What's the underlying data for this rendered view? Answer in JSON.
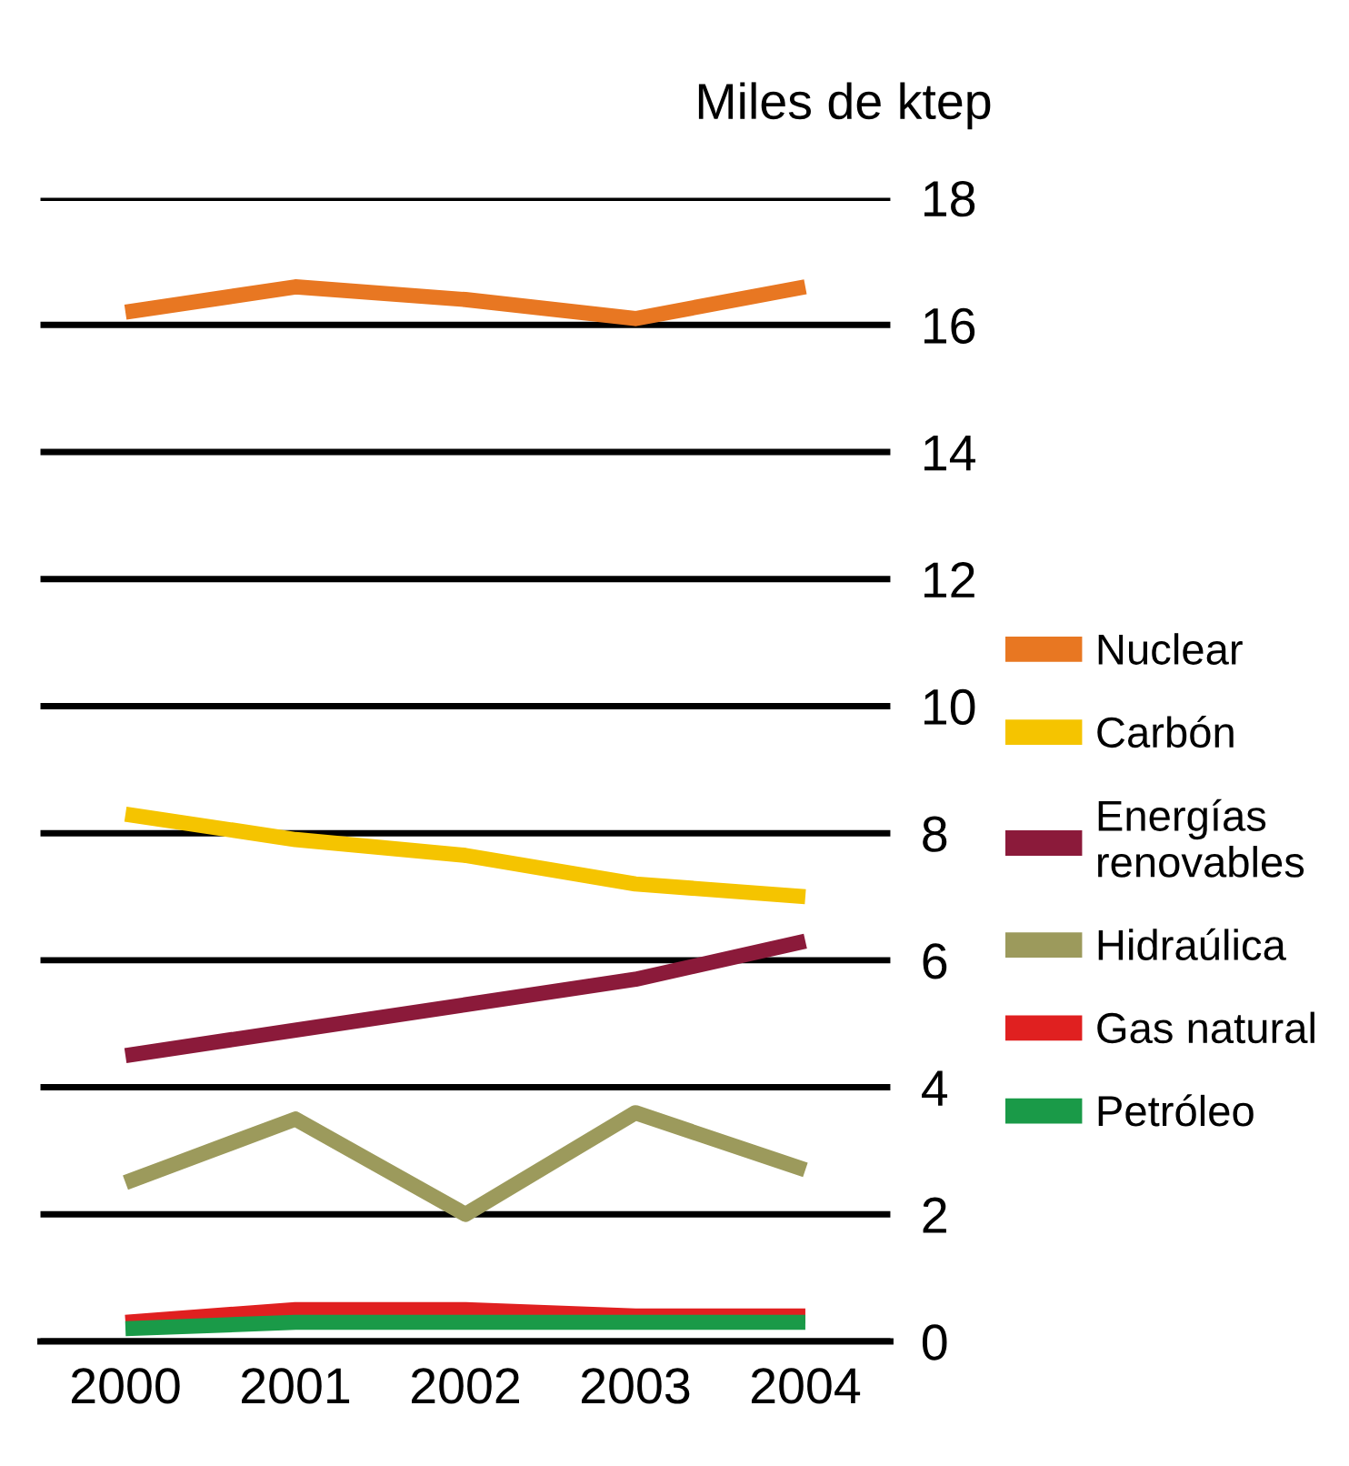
{
  "chart_data": {
    "type": "line",
    "ylabel": "Miles de ktep",
    "categories": [
      "2000",
      "2001",
      "2002",
      "2003",
      "2004"
    ],
    "series": [
      {
        "name": "Nuclear",
        "color": "#e87722",
        "values": [
          16.2,
          16.6,
          16.4,
          16.1,
          16.6
        ]
      },
      {
        "name": "Carbón",
        "color": "#f5c400",
        "values": [
          8.3,
          7.9,
          7.65,
          7.2,
          7.0
        ]
      },
      {
        "name": "Energías renovables",
        "color": "#8b1a3a",
        "values": [
          4.5,
          4.9,
          5.3,
          5.7,
          6.3
        ]
      },
      {
        "name": "Hidraúlica",
        "color": "#9c9a5c",
        "values": [
          2.5,
          3.5,
          2.0,
          3.6,
          2.7
        ]
      },
      {
        "name": "Gas natural",
        "color": "#e02020",
        "values": [
          0.3,
          0.5,
          0.5,
          0.4,
          0.4
        ]
      },
      {
        "name": "Petróleo",
        "color": "#1a9a48",
        "values": [
          0.2,
          0.3,
          0.3,
          0.3,
          0.3
        ]
      }
    ],
    "ylim": [
      0,
      18
    ],
    "yticks": [
      0,
      2,
      4,
      6,
      8,
      10,
      12,
      14,
      16,
      18
    ],
    "grid": "y",
    "legend": "right",
    "marker": "none",
    "line_style": "solid"
  }
}
